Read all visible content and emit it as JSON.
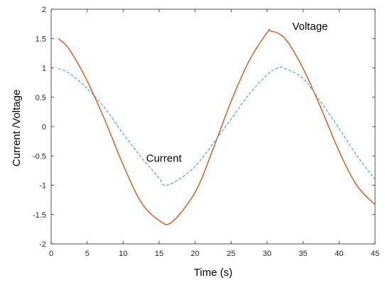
{
  "chart_data": {
    "type": "line",
    "xlabel": "Time (s)",
    "ylabel": "Current /Voltage",
    "xlim": [
      0,
      45
    ],
    "ylim": [
      -2,
      2
    ],
    "x_ticks": [
      "0",
      "5",
      "10",
      "15",
      "20",
      "25",
      "30",
      "35",
      "40",
      "45"
    ],
    "y_ticks": [
      "2",
      "1.5",
      "1",
      "0.5",
      "0",
      "-0.5",
      "-1",
      "-1.5",
      "-2"
    ],
    "grid": false,
    "annotations": [
      {
        "text": "Voltage",
        "series": "Voltage",
        "x": 33.5,
        "y": 1.65
      },
      {
        "text": "Current",
        "series": "Current",
        "x": 13.2,
        "y": -0.6
      }
    ],
    "series": [
      {
        "name": "Voltage",
        "color": "#d95319",
        "style": "solid",
        "x": [
          1.0,
          2.5,
          5.0,
          7.5,
          10.0,
          12.5,
          15.0,
          16.75,
          20.0,
          22.5,
          25.0,
          27.5,
          30.0,
          30.5,
          32.5,
          35.0,
          37.5,
          40.0,
          42.5,
          45.0
        ],
        "y": [
          1.5,
          1.32,
          0.78,
          0.1,
          -0.65,
          -1.29,
          -1.6,
          -1.63,
          -1.12,
          -0.38,
          0.43,
          1.12,
          1.6,
          1.63,
          1.5,
          0.99,
          0.31,
          -0.42,
          -1.01,
          -1.33
        ]
      },
      {
        "name": "Current",
        "color": "#3a8fd6",
        "style": "dashed",
        "x": [
          1.0,
          2.5,
          5.0,
          7.5,
          10.0,
          12.5,
          15.0,
          15.75,
          17.5,
          20.0,
          22.5,
          25.0,
          27.5,
          30.0,
          31.5,
          32.5,
          35.0,
          37.5,
          40.0,
          42.5,
          45.0
        ],
        "y": [
          0.99,
          0.91,
          0.65,
          0.31,
          -0.12,
          -0.52,
          -0.88,
          -1.0,
          -0.92,
          -0.68,
          -0.29,
          0.13,
          0.55,
          0.88,
          1.0,
          0.99,
          0.82,
          0.41,
          -0.03,
          -0.5,
          -0.9
        ]
      }
    ]
  }
}
